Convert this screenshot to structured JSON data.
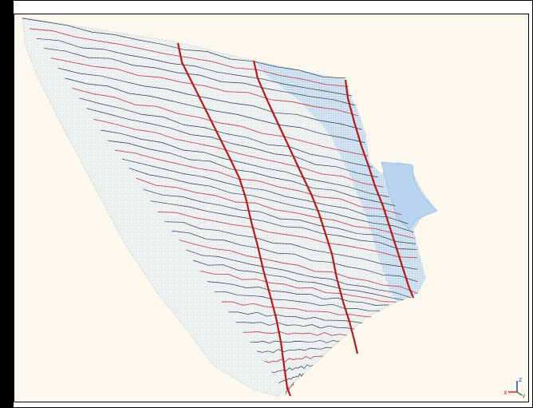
{
  "viewport": {
    "background": "#fdf8ed",
    "colors": {
      "mesh": "#9fc4e6",
      "mesh_fill": "#e2eef8",
      "grid_dark": "#2a3a40",
      "grid_red": "#c24a55",
      "cutlines": "#b8181a"
    },
    "axis_triad": {
      "x_label": "x",
      "y_label": "y",
      "z_label": "z",
      "x_color": "#d8302a",
      "y_color": "#2a9a2a",
      "z_color": "#2050c8"
    }
  }
}
